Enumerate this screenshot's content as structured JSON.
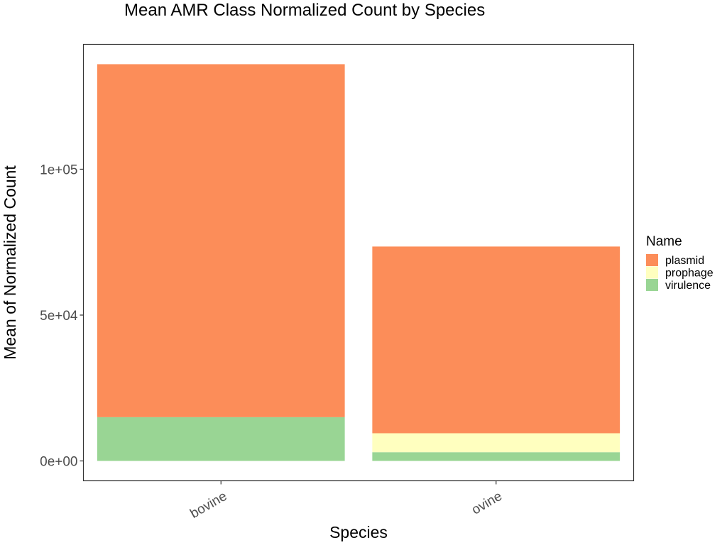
{
  "chart_data": {
    "type": "bar",
    "stacked": true,
    "title": "Mean AMR Class Normalized Count by Species",
    "xlabel": "Species",
    "ylabel": "Mean of Normalized Count",
    "categories": [
      "bovine",
      "ovine"
    ],
    "series": [
      {
        "name": "virulence",
        "color": "#99d594",
        "values": [
          15000,
          3000
        ]
      },
      {
        "name": "prophage",
        "color": "#ffffbf",
        "values": [
          0,
          6500
        ]
      },
      {
        "name": "plasmid",
        "color": "#fc8d59",
        "values": [
          121000,
          64000
        ]
      }
    ],
    "ylim": [
      -6800,
      142800
    ],
    "yticks": [
      {
        "value": 0,
        "label": "0e+00"
      },
      {
        "value": 50000,
        "label": "5e+04"
      },
      {
        "value": 100000,
        "label": "1e+05"
      }
    ],
    "grid": false,
    "legend": {
      "title": "Name",
      "position": "right",
      "entries": [
        {
          "name": "plasmid",
          "color": "#fc8d59"
        },
        {
          "name": "prophage",
          "color": "#ffffbf"
        },
        {
          "name": "virulence",
          "color": "#99d594"
        }
      ]
    }
  }
}
